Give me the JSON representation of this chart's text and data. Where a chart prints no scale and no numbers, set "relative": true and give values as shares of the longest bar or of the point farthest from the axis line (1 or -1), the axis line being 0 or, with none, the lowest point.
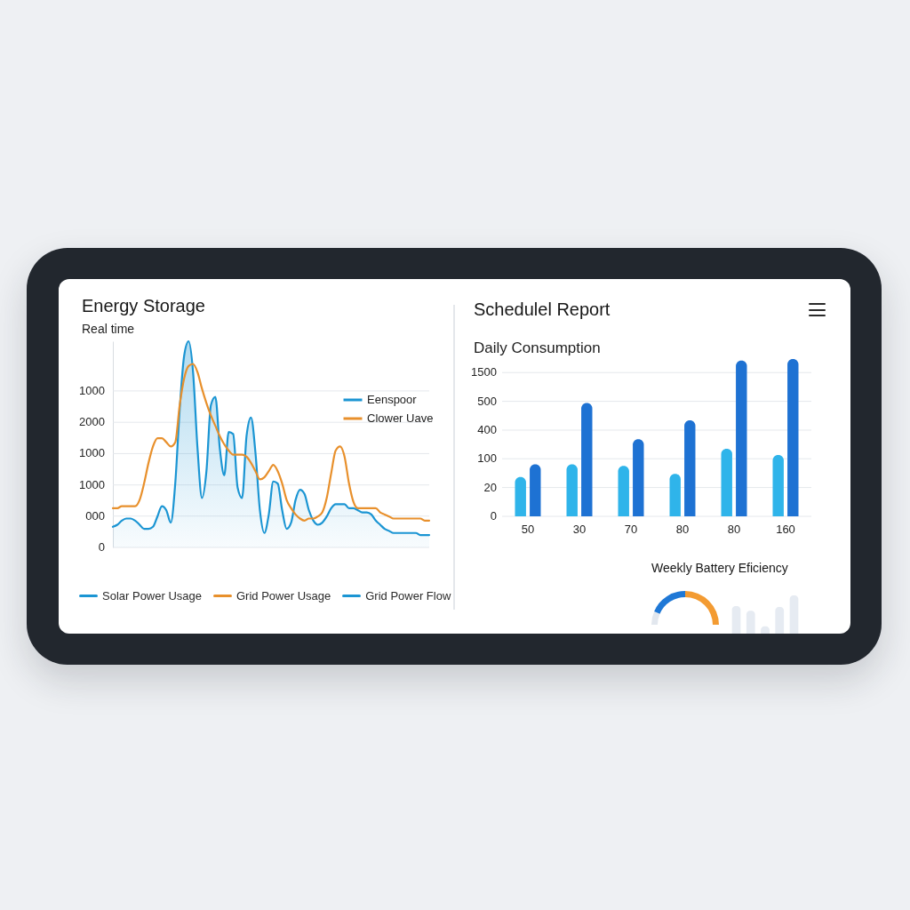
{
  "chart_data": [
    {
      "type": "line",
      "title": "Energy Storage",
      "subtitle": "Real time",
      "relative": true,
      "categories": [
        null,
        null,
        null,
        null,
        null,
        null,
        null,
        null,
        null,
        null,
        null,
        null,
        null,
        null,
        null,
        null,
        null,
        null,
        null,
        null,
        null,
        null,
        null,
        null,
        null,
        null,
        null,
        null,
        null,
        null,
        null,
        null,
        null,
        null,
        null,
        null,
        null,
        null,
        null,
        null,
        null,
        null,
        null,
        null,
        null,
        null,
        null,
        null,
        null,
        null,
        null,
        null,
        null,
        null,
        null,
        null,
        null,
        null,
        null,
        null,
        null,
        null,
        null,
        null,
        null,
        null,
        null,
        null,
        null,
        null,
        null,
        null
      ],
      "series": [
        {
          "name": "Eenspoor",
          "color": "#1b95d3",
          "type": "area",
          "values": [
            0.1,
            0.11,
            0.13,
            0.14,
            0.14,
            0.13,
            0.11,
            0.09,
            0.09,
            0.1,
            0.15,
            0.2,
            0.18,
            0.12,
            0.31,
            0.67,
            0.93,
            1,
            0.85,
            0.48,
            0.24,
            0.37,
            0.69,
            0.73,
            0.48,
            0.35,
            0.56,
            0.55,
            0.29,
            0.24,
            0.54,
            0.63,
            0.46,
            0.18,
            0.07,
            0.16,
            0.32,
            0.31,
            0.18,
            0.09,
            0.12,
            0.23,
            0.28,
            0.26,
            0.18,
            0.13,
            0.11,
            0.12,
            0.15,
            0.19,
            0.21,
            0.21,
            0.21,
            0.19,
            0.19,
            0.18,
            0.17,
            0.17,
            0.16,
            0.13,
            0.11,
            0.09,
            0.08,
            0.07,
            0.07,
            0.07,
            0.07,
            0.07,
            0.07,
            0.06,
            0.06,
            0.06
          ]
        },
        {
          "name": "Clower Uave",
          "color": "#e8902c",
          "values": [
            0.19,
            0.19,
            0.2,
            0.2,
            0.2,
            0.2,
            0.23,
            0.31,
            0.41,
            0.49,
            0.53,
            0.53,
            0.51,
            0.49,
            0.51,
            0.69,
            0.82,
            0.88,
            0.89,
            0.85,
            0.77,
            0.7,
            0.64,
            0.59,
            0.54,
            0.5,
            0.47,
            0.45,
            0.45,
            0.45,
            0.44,
            0.41,
            0.37,
            0.33,
            0.34,
            0.37,
            0.4,
            0.37,
            0.31,
            0.23,
            0.19,
            0.16,
            0.14,
            0.13,
            0.14,
            0.14,
            0.15,
            0.17,
            0.24,
            0.36,
            0.47,
            0.49,
            0.44,
            0.31,
            0.22,
            0.19,
            0.19,
            0.19,
            0.19,
            0.19,
            0.17,
            0.16,
            0.15,
            0.14,
            0.14,
            0.14,
            0.14,
            0.14,
            0.14,
            0.14,
            0.13,
            0.13
          ]
        }
      ],
      "ref_lines": [
        {
          "axis": "y",
          "value": 0
        },
        {
          "axis": "y",
          "value": 0.152
        },
        {
          "axis": "y",
          "value": 0.303
        },
        {
          "axis": "y",
          "value": 0.455
        },
        {
          "axis": "y",
          "value": 0.607
        },
        {
          "axis": "y",
          "value": 0.759
        }
      ],
      "legend": "top right",
      "annotations": [
        "1000",
        "2000",
        "1000",
        "1000",
        "000",
        "0",
        "Solar Power Usage",
        "Grid Power Usage",
        "Grid Power Flow"
      ]
    },
    {
      "type": "bar",
      "title": "Schedulel Report",
      "subtitle": "Daily Consumption",
      "relative": true,
      "categories": [
        "50",
        "30",
        "70",
        "80",
        "80",
        "160"
      ],
      "series": [
        {
          "color": "#2fb4ea",
          "values": [
            0.25,
            0.33,
            0.32,
            0.27,
            0.43,
            0.39
          ]
        },
        {
          "color": "#1e72d3",
          "values": [
            0.33,
            0.72,
            0.49,
            0.61,
            0.99,
            1
          ]
        }
      ],
      "ref_lines": [
        {
          "axis": "y",
          "value": 0
        },
        {
          "axis": "y",
          "value": 0.183
        },
        {
          "axis": "y",
          "value": 0.366
        },
        {
          "axis": "y",
          "value": 0.548
        },
        {
          "axis": "y",
          "value": 0.731
        },
        {
          "axis": "y",
          "value": 0.914
        }
      ],
      "annotations": [
        "1500",
        "500",
        "400",
        "100",
        "20",
        "0"
      ]
    },
    {
      "type": "donut",
      "title": "Weekly Battery Eficiency",
      "categories": [
        null,
        null,
        null
      ],
      "values": [
        13,
        37,
        50
      ],
      "colors": [
        "#e2e7ee",
        "#1f78d6",
        "#f39b32"
      ]
    },
    {
      "type": "bar",
      "relative": true,
      "categories": [
        null,
        null,
        null,
        null,
        null
      ],
      "values": [
        0.72,
        0.6,
        0.19,
        0.7,
        1
      ],
      "color": "#e6ebf2"
    }
  ]
}
